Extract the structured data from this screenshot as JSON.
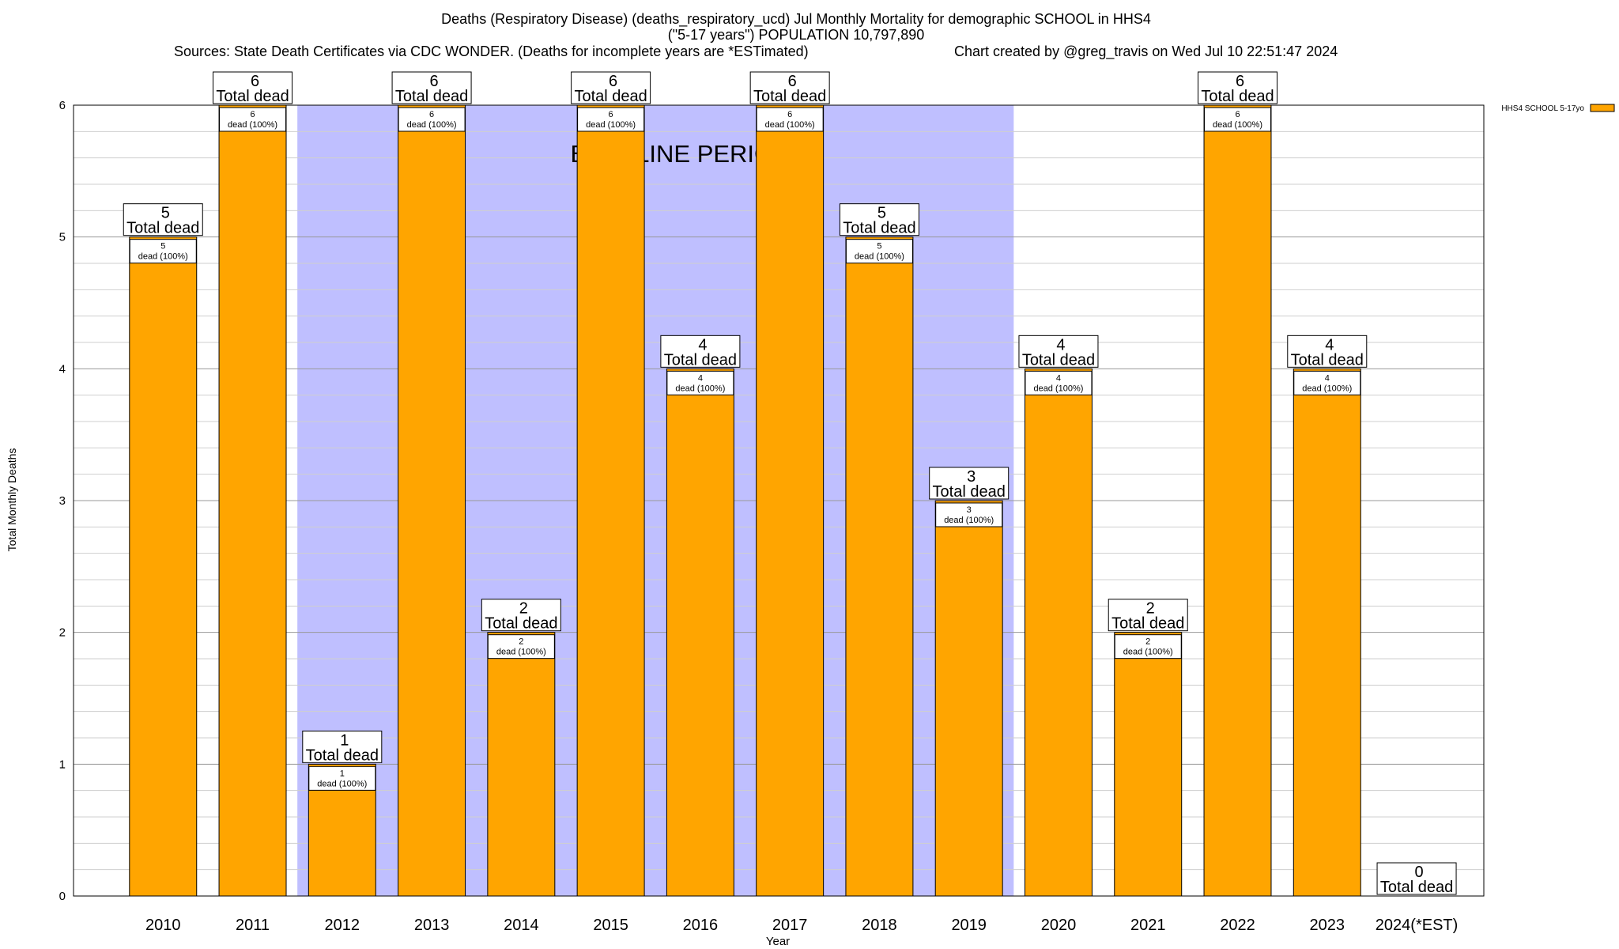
{
  "chart_data": {
    "type": "bar",
    "title_lines": [
      "Deaths (Respiratory Disease) (deaths_respiratory_ucd) Jul Monthly Mortality for demographic SCHOOL in HHS4",
      "(\"5-17 years\") POPULATION 10,797,890"
    ],
    "sources_text": "Sources: State Death Certificates via CDC WONDER. (Deaths for incomplete years are *ESTimated)",
    "credit_text": "Chart created by @greg_travis on Wed Jul 10 22:51:47 2024",
    "xlabel": "Year",
    "ylabel": "Total Monthly Deaths",
    "ylim": [
      0,
      6
    ],
    "y_ticks": [
      0,
      1,
      2,
      3,
      4,
      5,
      6
    ],
    "minor_grid_step": 0.2,
    "grid": true,
    "categories": [
      "2010",
      "2011",
      "2012",
      "2013",
      "2014",
      "2015",
      "2016",
      "2017",
      "2018",
      "2019",
      "2020",
      "2021",
      "2022",
      "2023",
      "2024(*EST)"
    ],
    "series": [
      {
        "name": "HHS4 SCHOOL 5-17yo",
        "color": "#FFA500",
        "values": [
          5,
          6,
          1,
          6,
          2,
          6,
          4,
          6,
          5,
          3,
          4,
          2,
          6,
          4,
          0
        ]
      }
    ],
    "total_label_suffix": "Total dead",
    "bar_label_suffix": "dead (100%)",
    "baseline": {
      "label": "BASELINE PERIOD",
      "from": "2012",
      "to": "2019",
      "color": "#BFBFFF"
    },
    "legend_position": "top-right"
  }
}
